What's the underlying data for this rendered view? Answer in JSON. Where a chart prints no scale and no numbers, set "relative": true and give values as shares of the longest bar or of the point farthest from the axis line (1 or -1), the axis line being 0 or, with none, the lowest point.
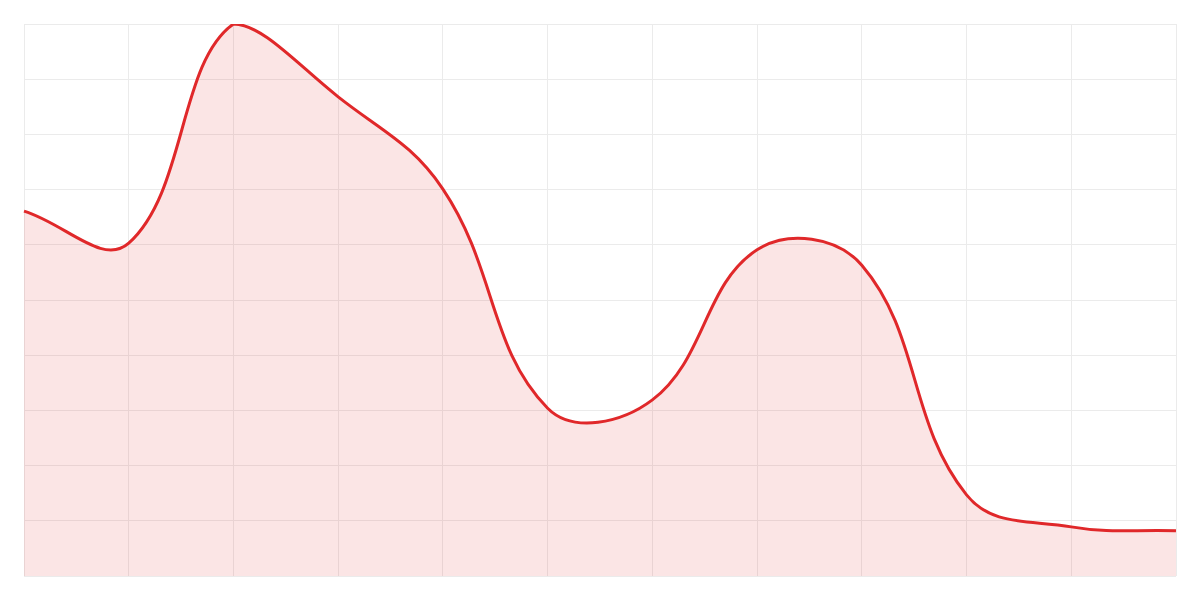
{
  "chart_data": {
    "type": "area",
    "relative": true,
    "grid": true,
    "categories": [
      null,
      null,
      null,
      null,
      null,
      null,
      null,
      null,
      null,
      null,
      null,
      null
    ],
    "series": [
      {
        "color": "#e0282a",
        "values": [
          0.661,
          0.603,
          1.0,
          0.868,
          0.701,
          0.304,
          0.319,
          0.591,
          0.563,
          0.147,
          0.089,
          0.082
        ]
      }
    ]
  }
}
